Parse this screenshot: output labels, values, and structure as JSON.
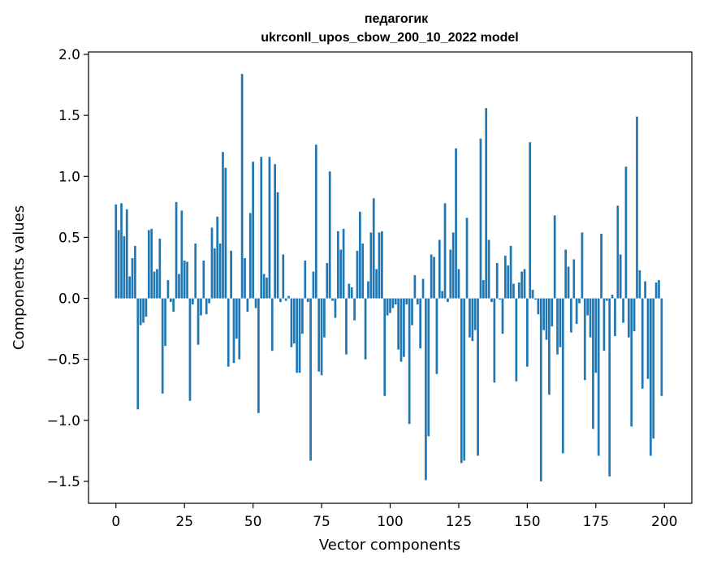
{
  "chart_data": {
    "type": "bar",
    "title": "педагогик",
    "subtitle": "ukrconll_upos_cbow_200_10_2022 model",
    "xlabel": "Vector components",
    "ylabel": "Components values",
    "xlim": [
      -10,
      210
    ],
    "ylim": [
      -1.68,
      2.02
    ],
    "xticks": [
      0,
      25,
      50,
      75,
      100,
      125,
      150,
      175,
      200
    ],
    "xtick_labels": [
      "0",
      "25",
      "50",
      "75",
      "100",
      "125",
      "150",
      "175",
      "200"
    ],
    "yticks": [
      -1.5,
      -1.0,
      -0.5,
      0.0,
      0.5,
      1.0,
      1.5,
      2.0
    ],
    "ytick_labels": [
      "−1.5",
      "−1.0",
      "−0.5",
      "0.0",
      "0.5",
      "1.0",
      "1.5",
      "2.0"
    ],
    "bar_color": "#1f77b4",
    "x": [
      0,
      1,
      2,
      3,
      4,
      5,
      6,
      7,
      8,
      9,
      10,
      11,
      12,
      13,
      14,
      15,
      16,
      17,
      18,
      19,
      20,
      21,
      22,
      23,
      24,
      25,
      26,
      27,
      28,
      29,
      30,
      31,
      32,
      33,
      34,
      35,
      36,
      37,
      38,
      39,
      40,
      41,
      42,
      43,
      44,
      45,
      46,
      47,
      48,
      49,
      50,
      51,
      52,
      53,
      54,
      55,
      56,
      57,
      58,
      59,
      60,
      61,
      62,
      63,
      64,
      65,
      66,
      67,
      68,
      69,
      70,
      71,
      72,
      73,
      74,
      75,
      76,
      77,
      78,
      79,
      80,
      81,
      82,
      83,
      84,
      85,
      86,
      87,
      88,
      89,
      90,
      91,
      92,
      93,
      94,
      95,
      96,
      97,
      98,
      99,
      100,
      101,
      102,
      103,
      104,
      105,
      106,
      107,
      108,
      109,
      110,
      111,
      112,
      113,
      114,
      115,
      116,
      117,
      118,
      119,
      120,
      121,
      122,
      123,
      124,
      125,
      126,
      127,
      128,
      129,
      130,
      131,
      132,
      133,
      134,
      135,
      136,
      137,
      138,
      139,
      140,
      141,
      142,
      143,
      144,
      145,
      146,
      147,
      148,
      149,
      150,
      151,
      152,
      153,
      154,
      155,
      156,
      157,
      158,
      159,
      160,
      161,
      162,
      163,
      164,
      165,
      166,
      167,
      168,
      169,
      170,
      171,
      172,
      173,
      174,
      175,
      176,
      177,
      178,
      179,
      180,
      181,
      182,
      183,
      184,
      185,
      186,
      187,
      188,
      189,
      190,
      191,
      192,
      193,
      194,
      195,
      196,
      197,
      198,
      199
    ],
    "values": [
      0.77,
      0.56,
      0.78,
      0.51,
      0.73,
      0.18,
      0.33,
      0.43,
      -0.91,
      -0.22,
      -0.2,
      -0.15,
      0.56,
      0.57,
      0.22,
      0.24,
      0.49,
      -0.78,
      -0.39,
      0.15,
      -0.03,
      -0.11,
      0.79,
      0.2,
      0.72,
      0.31,
      0.3,
      -0.84,
      -0.05,
      0.45,
      -0.38,
      -0.14,
      0.31,
      -0.13,
      -0.04,
      0.58,
      0.41,
      0.67,
      0.45,
      1.2,
      1.07,
      -0.56,
      0.39,
      -0.53,
      -0.33,
      -0.5,
      1.84,
      0.33,
      -0.11,
      0.7,
      1.12,
      -0.08,
      -0.94,
      1.16,
      0.2,
      0.17,
      1.16,
      -0.43,
      1.1,
      0.87,
      -0.03,
      0.36,
      -0.02,
      0.02,
      -0.4,
      -0.37,
      -0.61,
      -0.61,
      -0.29,
      0.31,
      -0.03,
      -1.33,
      0.22,
      1.26,
      -0.6,
      -0.63,
      -0.32,
      0.29,
      1.04,
      -0.02,
      -0.16,
      0.55,
      0.4,
      0.57,
      -0.46,
      0.12,
      0.09,
      -0.18,
      0.39,
      0.71,
      0.45,
      -0.5,
      0.14,
      0.54,
      0.82,
      0.24,
      0.54,
      0.55,
      -0.8,
      -0.14,
      -0.12,
      -0.08,
      -0.05,
      -0.42,
      -0.52,
      -0.48,
      -0.05,
      -1.03,
      -0.22,
      0.19,
      -0.05,
      -0.41,
      0.16,
      -1.49,
      -1.13,
      0.36,
      0.34,
      -0.62,
      0.48,
      0.06,
      0.78,
      -0.03,
      0.4,
      0.54,
      1.23,
      0.24,
      -1.35,
      -1.33,
      0.66,
      -0.32,
      -0.35,
      -0.26,
      -1.29,
      1.31,
      0.15,
      1.56,
      0.48,
      -0.03,
      -0.69,
      0.29,
      -0.01,
      -0.29,
      0.35,
      0.27,
      0.43,
      0.12,
      -0.68,
      0.13,
      0.22,
      0.24,
      -0.56,
      1.28,
      0.07,
      -0.01,
      -0.13,
      -1.5,
      -0.26,
      -0.34,
      -0.79,
      -0.23,
      0.68,
      -0.46,
      -0.4,
      -1.27,
      0.4,
      0.26,
      -0.28,
      0.32,
      -0.21,
      -0.04,
      0.54,
      -0.67,
      -0.14,
      -0.32,
      -1.07,
      -0.61,
      -1.29,
      0.53,
      -0.43,
      -0.02,
      -1.46,
      0.03,
      -0.31,
      0.76,
      0.36,
      -0.2,
      1.08,
      -0.32,
      -1.05,
      -0.27,
      1.49,
      0.23,
      -0.74,
      0.14,
      -0.66,
      -1.29,
      -1.15,
      0.13,
      0.15,
      -0.8
    ]
  }
}
